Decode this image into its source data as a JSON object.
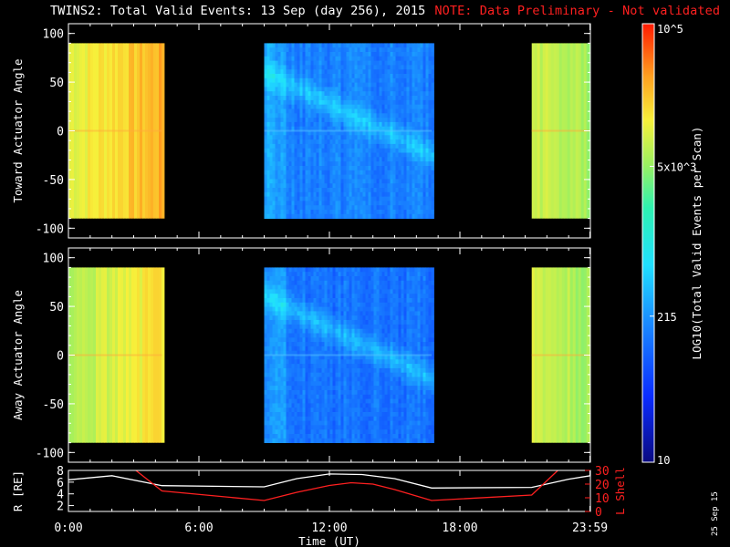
{
  "title": {
    "main": "TWINS2: Total Valid Events: 13 Sep (day 256), 2015",
    "note": "NOTE: Data Preliminary - Not validated"
  },
  "date_stamp": "25 Sep 15",
  "colors": {
    "background": "#000000",
    "note": "#ff2020",
    "lshell_line": "#ff2020",
    "rdist_line": "#ffffff"
  },
  "chart_data": [
    {
      "type": "heatmap",
      "name": "toward-panel",
      "ylabel": "Toward Actuator Angle",
      "ylim": [
        -110,
        110
      ],
      "yticks": [
        100,
        50,
        0,
        -50,
        -100
      ],
      "xlim": [
        0,
        24
      ],
      "segments": [
        {
          "start": 0.0,
          "end": 4.3,
          "level": 0.76
        },
        {
          "start": 9.0,
          "end": 16.7,
          "level": 0.3
        },
        {
          "start": 21.3,
          "end": 24.0,
          "level": 0.68
        }
      ],
      "angle_range": [
        -90,
        90
      ],
      "colorbar_label": "LOG10(Total Valid Events per Scan)"
    },
    {
      "type": "heatmap",
      "name": "away-panel",
      "ylabel": "Away Actuator Angle",
      "ylim": [
        -110,
        110
      ],
      "yticks": [
        100,
        50,
        0,
        -50,
        -100
      ],
      "xlim": [
        0,
        24
      ],
      "segments": [
        {
          "start": 0.0,
          "end": 4.3,
          "level": 0.7
        },
        {
          "start": 9.0,
          "end": 16.7,
          "level": 0.28
        },
        {
          "start": 21.3,
          "end": 24.0,
          "level": 0.68
        }
      ],
      "angle_range": [
        -90,
        90
      ]
    },
    {
      "type": "line",
      "name": "orbit-panel",
      "xlabel": "Time (UT)",
      "xticks": [
        {
          "x": 0,
          "label": "0:00"
        },
        {
          "x": 6,
          "label": "6:00"
        },
        {
          "x": 12,
          "label": "12:00"
        },
        {
          "x": 18,
          "label": "18:00"
        },
        {
          "x": 23.98,
          "label": "23:59"
        }
      ],
      "left_axis": {
        "label": "R [RE]",
        "ylim": [
          1,
          8
        ],
        "yticks": [
          2,
          4,
          6,
          8
        ]
      },
      "right_axis": {
        "label": "L Shell",
        "ylim": [
          0,
          30
        ],
        "yticks": [
          0,
          10,
          20,
          30
        ]
      },
      "series": [
        {
          "axis": "left",
          "color": "#ffffff",
          "x": [
            0,
            2,
            4.3,
            9,
            10.5,
            12,
            13.5,
            15,
            16.7,
            21.3,
            23,
            24
          ],
          "y": [
            6.4,
            7.1,
            5.4,
            5.2,
            6.6,
            7.4,
            7.3,
            6.6,
            5.0,
            5.1,
            6.5,
            7.1
          ]
        },
        {
          "axis": "right",
          "color": "#ff2020",
          "x": [
            3.1,
            4.3,
            9,
            10.5,
            12,
            13,
            14,
            15,
            16.7,
            21.3,
            22.5
          ],
          "y": [
            30,
            15,
            8,
            14,
            19,
            21,
            20,
            16,
            8,
            12,
            30
          ]
        }
      ]
    },
    {
      "type": "colorbar",
      "name": "colorbar",
      "label": "LOG10(Total Valid Events per Scan)",
      "min": 10,
      "max": 100000,
      "ticks": [
        {
          "value": 10,
          "label": "10"
        },
        {
          "value": 215,
          "label": "215"
        },
        {
          "value": 5000,
          "label": "5x10^3"
        },
        {
          "value": 100000,
          "label": "10^5"
        }
      ]
    }
  ]
}
